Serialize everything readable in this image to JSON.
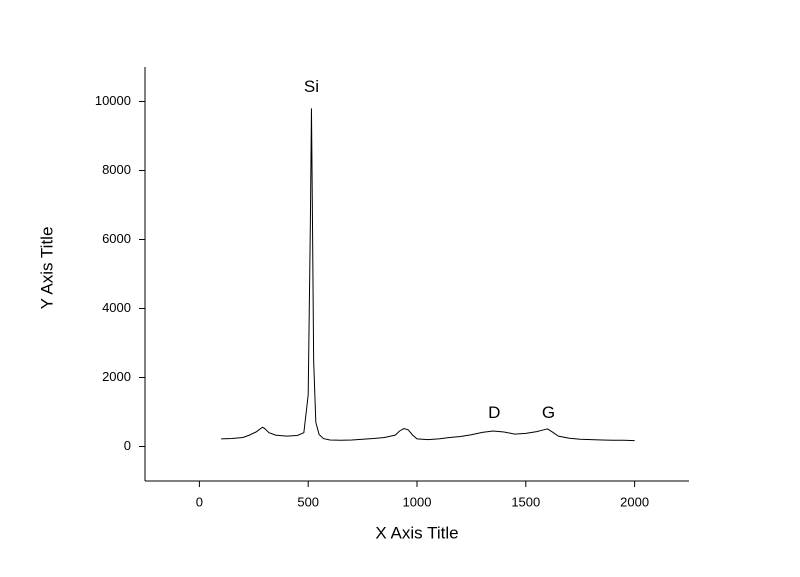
{
  "chart_data": {
    "type": "line",
    "xlabel": "X Axis Title",
    "ylabel": "Y Axis Title",
    "x": [
      100,
      150,
      200,
      230,
      260,
      290,
      300,
      320,
      350,
      400,
      450,
      480,
      500,
      510,
      515,
      520,
      525,
      535,
      550,
      570,
      600,
      650,
      700,
      750,
      800,
      850,
      900,
      920,
      940,
      960,
      980,
      1000,
      1050,
      1100,
      1150,
      1200,
      1250,
      1300,
      1350,
      1400,
      1450,
      1500,
      1550,
      1580,
      1600,
      1620,
      1650,
      1700,
      1750,
      1800,
      1850,
      1900,
      1950,
      2000
    ],
    "values": [
      220,
      230,
      260,
      330,
      420,
      560,
      520,
      400,
      330,
      300,
      320,
      400,
      1500,
      6500,
      9800,
      6300,
      2500,
      700,
      350,
      230,
      190,
      180,
      190,
      210,
      230,
      260,
      330,
      450,
      520,
      480,
      330,
      220,
      200,
      220,
      260,
      290,
      340,
      410,
      450,
      420,
      360,
      380,
      430,
      480,
      510,
      430,
      300,
      240,
      210,
      200,
      190,
      180,
      180,
      170
    ],
    "color": "#000000",
    "xlim": [
      -250,
      2250
    ],
    "xticks": [
      0,
      500,
      1000,
      1500,
      2000
    ],
    "ylim": [
      -1000,
      11000
    ],
    "yticks": [
      0,
      2000,
      4000,
      6000,
      8000,
      10000
    ],
    "grid": false,
    "annotations": [
      {
        "text": "Si",
        "x": 515,
        "y": 10400
      },
      {
        "text": "D",
        "x": 1355,
        "y": 950
      },
      {
        "text": "G",
        "x": 1604,
        "y": 950
      }
    ]
  }
}
